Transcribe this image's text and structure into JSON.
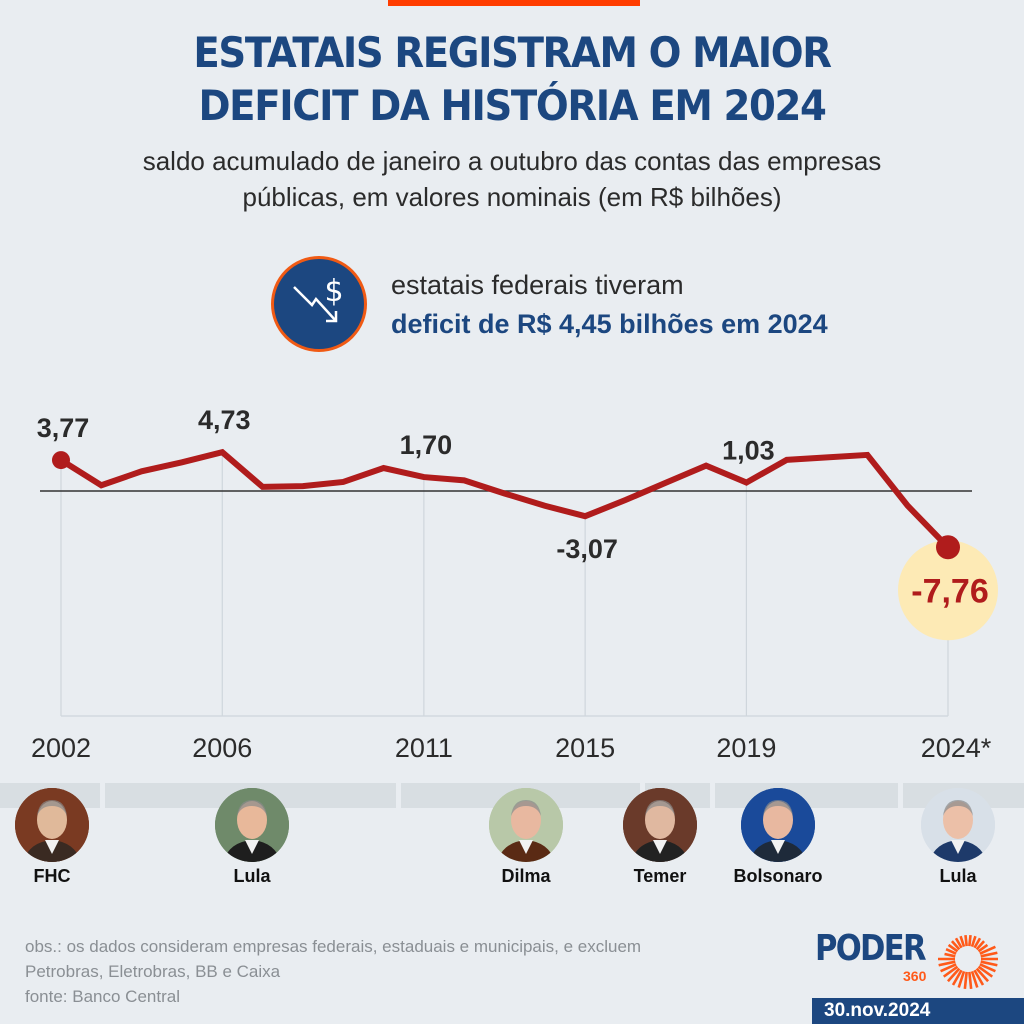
{
  "header": {
    "title_line1": "ESTATAIS REGISTRAM O MAIOR",
    "title_line2": "DEFICIT DA HISTÓRIA EM 2024",
    "subtitle_line1": "saldo acumulado de janeiro a outubro das contas das empresas",
    "subtitle_line2": "públicas, em valores nominais (em R$ bilhões)"
  },
  "callout": {
    "icon": "money-down-trend-icon",
    "line1": "estatais federais tiveram",
    "line2": "deficit de R$ 4,45 bilhões em 2024"
  },
  "chart_data": {
    "type": "line",
    "title": "ESTATAIS REGISTRAM O MAIOR DEFICIT DA HISTÓRIA EM 2024",
    "subtitle": "saldo acumulado de janeiro a outubro das contas das empresas públicas, em valores nominais (em R$ bilhões)",
    "xlabel": "",
    "ylabel": "R$ bilhões",
    "x": [
      2002,
      2003,
      2004,
      2005,
      2006,
      2007,
      2008,
      2009,
      2010,
      2011,
      2012,
      2013,
      2014,
      2015,
      2016,
      2017,
      2018,
      2019,
      2020,
      2021,
      2022,
      2023,
      2024
    ],
    "series": [
      {
        "name": "saldo acumulado jan-out",
        "color": "#b01c1c",
        "values": [
          3.77,
          0.7,
          2.4,
          3.5,
          4.73,
          0.5,
          0.6,
          1.1,
          2.8,
          1.7,
          1.3,
          -0.3,
          -1.8,
          -3.07,
          -1.1,
          1.0,
          3.1,
          1.03,
          3.8,
          4.1,
          4.4,
          -1.8,
          -7.76
        ]
      }
    ],
    "x_tick_labels": [
      {
        "year": 2002,
        "label": "2002"
      },
      {
        "year": 2006,
        "label": "2006"
      },
      {
        "year": 2011,
        "label": "2011"
      },
      {
        "year": 2015,
        "label": "2015"
      },
      {
        "year": 2019,
        "label": "2019"
      },
      {
        "year": 2024,
        "label": "2024*"
      }
    ],
    "data_labels": [
      {
        "year": 2002,
        "label": "3,77",
        "pos": "above"
      },
      {
        "year": 2006,
        "label": "4,73",
        "pos": "above"
      },
      {
        "year": 2011,
        "label": "1,70",
        "pos": "above"
      },
      {
        "year": 2015,
        "label": "-3,07",
        "pos": "below"
      },
      {
        "year": 2019,
        "label": "1,03",
        "pos": "above"
      },
      {
        "year": 2024,
        "label": "-7,76",
        "pos": "below",
        "highlight": true
      }
    ],
    "zero_line": true,
    "grid": false,
    "highlight_color": "#fdeab5",
    "ylim": [
      -9,
      6
    ]
  },
  "presidents": [
    {
      "name": "FHC",
      "year": 2002,
      "colors": [
        "#7a3a22",
        "#e0b99a",
        "#3a2a22"
      ]
    },
    {
      "name": "Lula",
      "year": 2006,
      "colors": [
        "#6f8a6a",
        "#e8b89a",
        "#1e1e1e"
      ]
    },
    {
      "name": "Dilma",
      "year": 2013.5,
      "colors": [
        "#b8c8a8",
        "#e8b8a0",
        "#5a2a14"
      ]
    },
    {
      "name": "Temer",
      "year": 2016.5,
      "colors": [
        "#6a3a2a",
        "#e0b8a0",
        "#222"
      ]
    },
    {
      "name": "Bolsonaro",
      "year": 2020.5,
      "colors": [
        "#1a4a9a",
        "#e8b8a0",
        "#1e2a3a"
      ]
    },
    {
      "name": "Lula",
      "year": 2024,
      "colors": [
        "#d8e0e8",
        "#ecc0a8",
        "#1e3a6a"
      ]
    }
  ],
  "footer": {
    "note_line1": "obs.: os dados consideram empresas federais, estaduais e municipais, e excluem",
    "note_line2": "Petrobras, Eletrobras, BB e Caixa",
    "source": "fonte: Banco Central",
    "logo_word": "PODER",
    "logo_number": "360",
    "date": "30.nov.2024"
  },
  "colors": {
    "brand_blue": "#1c4780",
    "accent_orange": "#ff3d00",
    "line_red": "#b01c1c",
    "background": "#e9edf1"
  }
}
